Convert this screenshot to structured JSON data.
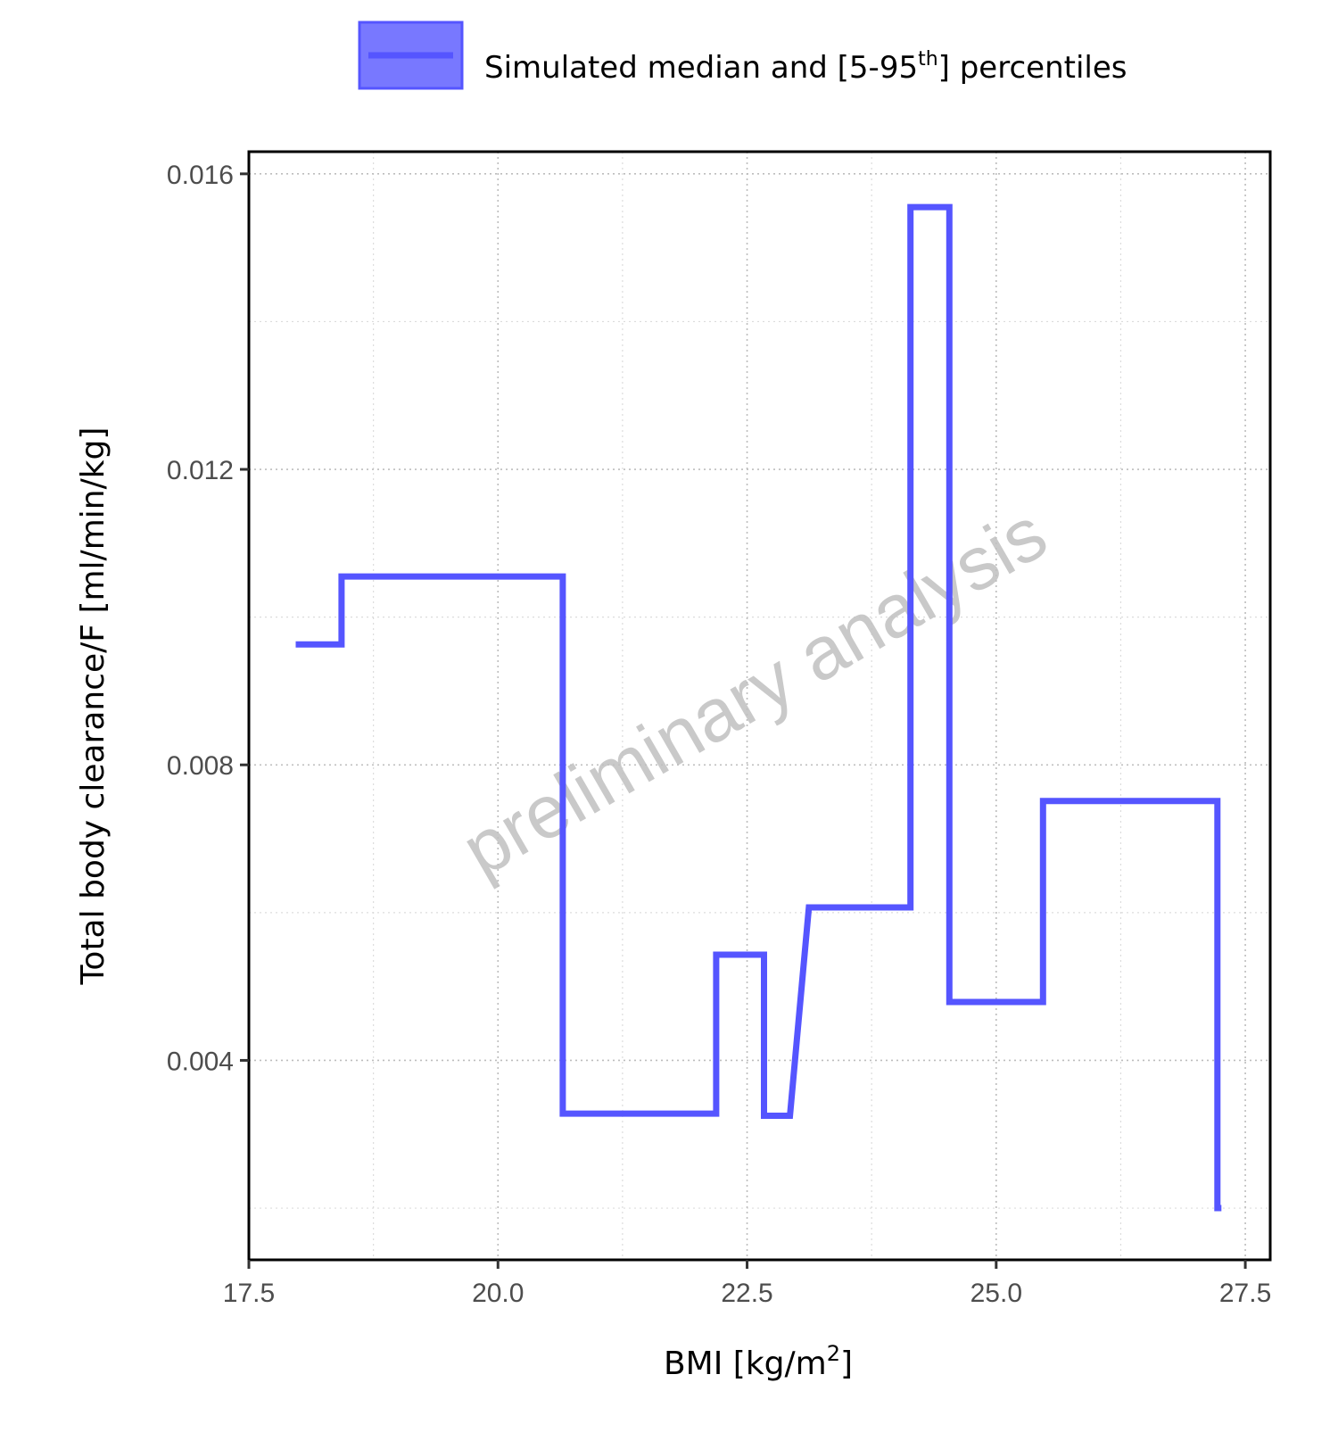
{
  "legend": {
    "label_main": "Simulated median and [5-95",
    "label_sup": "th",
    "label_end": "] percentiles"
  },
  "watermark": "preliminary analysis",
  "chart_data": {
    "type": "line",
    "step": true,
    "xlabel_main": "BMI [kg/m",
    "xlabel_sup": "2",
    "xlabel_end": "]",
    "ylabel": "Total body clearance/F [ml/min/kg]",
    "xlim": [
      17.5,
      27.75
    ],
    "ylim": [
      0.0013,
      0.0163
    ],
    "x_ticks": [
      17.5,
      20.0,
      22.5,
      25.0,
      27.5
    ],
    "x_tick_labels": [
      "17.5",
      "20.0",
      "22.5",
      "25.0",
      "27.5"
    ],
    "y_ticks": [
      0.004,
      0.008,
      0.012,
      0.016
    ],
    "y_tick_labels": [
      "0.004",
      "0.008",
      "0.012",
      "0.016"
    ],
    "x_minor": [
      18.75,
      21.25,
      23.75,
      26.25
    ],
    "y_minor": [
      0.002,
      0.006,
      0.01,
      0.014
    ],
    "grid": true,
    "legend_position": "top",
    "colors": {
      "line": "#5555ff",
      "legend_fill": "#7878ff"
    },
    "series": [
      {
        "name": "Simulated median and [5-95th] percentiles",
        "x": [
          17.97,
          18.43,
          18.43,
          20.65,
          20.65,
          22.19,
          22.19,
          22.67,
          22.67,
          22.93,
          23.12,
          24.14,
          24.14,
          24.53,
          24.53,
          25.47,
          25.47,
          27.22,
          27.22,
          27.26
        ],
        "y": [
          0.00963,
          0.00963,
          0.01055,
          0.01055,
          0.00328,
          0.00328,
          0.00543,
          0.00543,
          0.00325,
          0.00325,
          0.00607,
          0.00607,
          0.01555,
          0.01555,
          0.00479,
          0.00479,
          0.00751,
          0.00751,
          0.002,
          0.002
        ]
      }
    ]
  }
}
